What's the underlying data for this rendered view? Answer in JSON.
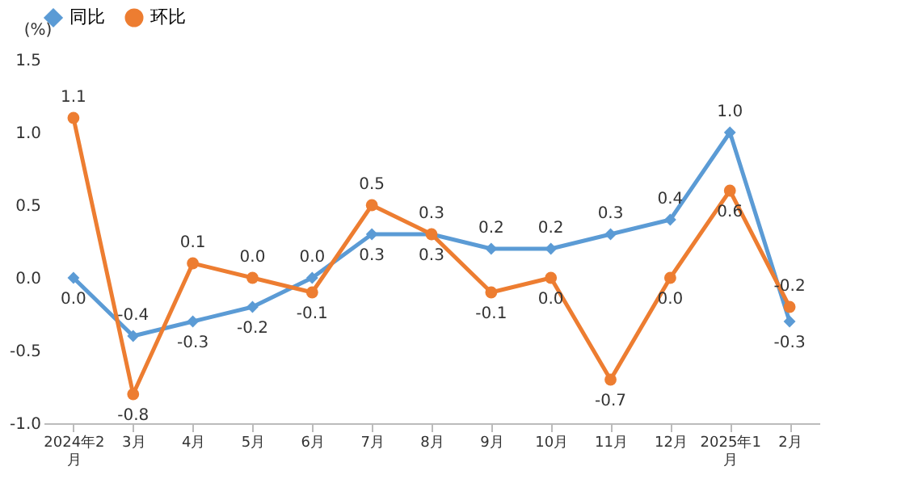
{
  "chart_data": {
    "type": "line",
    "ylabel": "(%)",
    "categories": [
      "2024年2月",
      "3月",
      "4月",
      "5月",
      "6月",
      "7月",
      "8月",
      "9月",
      "10月",
      "11月",
      "12月",
      "2025年1月",
      "2月"
    ],
    "series": [
      {
        "name": "同比",
        "color": "#5b9bd5",
        "marker": "diamond",
        "values": [
          0.0,
          -0.4,
          -0.3,
          -0.2,
          0.0,
          0.3,
          0.3,
          0.2,
          0.2,
          0.3,
          0.4,
          1.0,
          -0.3
        ],
        "value_labels": [
          "0.0",
          "-0.4",
          "-0.3",
          "-0.2",
          "0.0",
          "0.3",
          "0.3",
          "0.2",
          "0.2",
          "0.3",
          "0.4",
          "1.0",
          "-0.3"
        ]
      },
      {
        "name": "环比",
        "color": "#ed7d31",
        "marker": "circle",
        "values": [
          1.1,
          -0.8,
          0.1,
          0.0,
          -0.1,
          0.5,
          0.3,
          -0.1,
          0.0,
          -0.7,
          0.0,
          0.6,
          -0.2
        ],
        "value_labels": [
          "1.1",
          "-0.8",
          "0.1",
          "0.0",
          "-0.1",
          "0.5",
          "0.3",
          "-0.1",
          "0.0",
          "-0.7",
          "0.0",
          "0.6",
          "-0.2"
        ]
      }
    ],
    "ylim": [
      -1.0,
      1.5
    ],
    "yticks": [
      {
        "value": -1.0,
        "label": "-1.0"
      },
      {
        "value": -0.5,
        "label": "-0.5"
      },
      {
        "value": 0.0,
        "label": "0.0"
      },
      {
        "value": 0.5,
        "label": "0.5"
      },
      {
        "value": 1.0,
        "label": "1.0"
      },
      {
        "value": 1.5,
        "label": "1.5"
      }
    ],
    "legend": "top",
    "grid": false,
    "line_style": "solid"
  }
}
